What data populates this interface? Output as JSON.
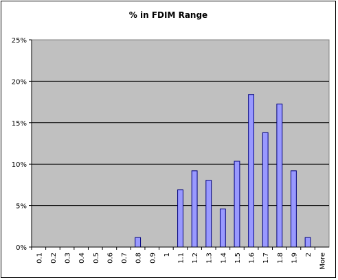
{
  "chart_data": {
    "type": "bar",
    "title": "% in FDIM Range",
    "xlabel": "",
    "ylabel": "",
    "categories": [
      "0.1",
      "0.2",
      "0.3",
      "0.4",
      "0.5",
      "0.6",
      "0.7",
      "0.8",
      "0.9",
      "1",
      "1.1",
      "1.2",
      "1.3",
      "1.4",
      "1.5",
      "1.6",
      "1.7",
      "1.8",
      "1.9",
      "2",
      "More"
    ],
    "values": [
      0,
      0,
      0,
      0,
      0,
      0,
      0,
      1.15,
      0,
      0,
      6.9,
      9.2,
      8.05,
      4.6,
      10.35,
      18.4,
      13.8,
      17.25,
      9.2,
      1.15,
      0
    ],
    "ylim": [
      0,
      25
    ],
    "yticks": [
      "0%",
      "5%",
      "10%",
      "15%",
      "20%",
      "25%"
    ],
    "grid": true,
    "legend": "none",
    "colors": {
      "plot_background": "#C0C0C0",
      "bar_fill": "#9999FF",
      "bar_stroke": "#000080",
      "gridline": "#000000"
    }
  }
}
